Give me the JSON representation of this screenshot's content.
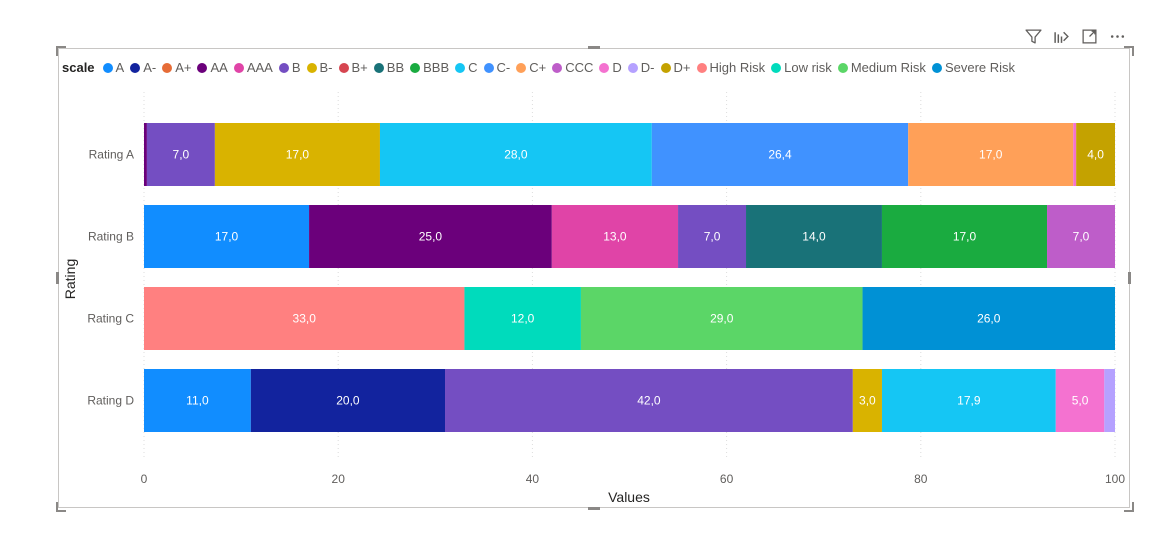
{
  "toolbar": {
    "filter_icon": "filter-icon",
    "drill_icon": "drill-icon",
    "focus_icon": "focus-mode-icon",
    "more_icon": "more-options-icon"
  },
  "legend": {
    "title": "scale",
    "items": [
      {
        "name": "A",
        "color": "#118DFF"
      },
      {
        "name": "A-",
        "color": "#12239E"
      },
      {
        "name": "A+",
        "color": "#E66C37"
      },
      {
        "name": "AA",
        "color": "#6B007B"
      },
      {
        "name": "AAA",
        "color": "#E044A7"
      },
      {
        "name": "B",
        "color": "#744EC2"
      },
      {
        "name": "B-",
        "color": "#D9B300"
      },
      {
        "name": "B+",
        "color": "#D64550"
      },
      {
        "name": "BB",
        "color": "#197278"
      },
      {
        "name": "BBB",
        "color": "#1AAB40"
      },
      {
        "name": "C",
        "color": "#15C6F4"
      },
      {
        "name": "C-",
        "color": "#4092FF"
      },
      {
        "name": "C+",
        "color": "#FFA058"
      },
      {
        "name": "CCC",
        "color": "#BE5DC9"
      },
      {
        "name": "D",
        "color": "#F472D0"
      },
      {
        "name": "D-",
        "color": "#B5A1FF"
      },
      {
        "name": "D+",
        "color": "#C4A200"
      },
      {
        "name": "High Risk",
        "color": "#FF8080"
      },
      {
        "name": "Low risk",
        "color": "#00DBBC"
      },
      {
        "name": "Medium Risk",
        "color": "#5BD667"
      },
      {
        "name": "Severe Risk",
        "color": "#0091D5"
      }
    ]
  },
  "chart_data": {
    "type": "bar",
    "orientation": "horizontal",
    "stacked": true,
    "categories": [
      "Rating A",
      "Rating B",
      "Rating C",
      "Rating D"
    ],
    "xlabel": "Values",
    "ylabel": "Rating",
    "xlim": [
      0,
      100
    ],
    "xticks": [
      "0",
      "20",
      "40",
      "60",
      "80",
      "100"
    ],
    "legend_position": "top-left",
    "grid": true,
    "rows": [
      {
        "category": "Rating A",
        "segments": [
          {
            "series": "AA",
            "value": 0.3,
            "label": ""
          },
          {
            "series": "B",
            "value": 7.0,
            "label": "7,0"
          },
          {
            "series": "B-",
            "value": 17.0,
            "label": "17,0"
          },
          {
            "series": "C",
            "value": 28.0,
            "label": "28,0"
          },
          {
            "series": "C-",
            "value": 26.4,
            "label": "26,4"
          },
          {
            "series": "C+",
            "value": 17.0,
            "label": "17,0"
          },
          {
            "series": "D",
            "value": 0.3,
            "label": ""
          },
          {
            "series": "D+",
            "value": 4.0,
            "label": "4,0"
          }
        ]
      },
      {
        "category": "Rating B",
        "segments": [
          {
            "series": "A",
            "value": 17.0,
            "label": "17,0"
          },
          {
            "series": "AA",
            "value": 25.0,
            "label": "25,0"
          },
          {
            "series": "AAA",
            "value": 13.0,
            "label": "13,0"
          },
          {
            "series": "B",
            "value": 7.0,
            "label": "7,0"
          },
          {
            "series": "BB",
            "value": 14.0,
            "label": "14,0"
          },
          {
            "series": "BBB",
            "value": 17.0,
            "label": "17,0"
          },
          {
            "series": "CCC",
            "value": 7.0,
            "label": "7,0"
          }
        ]
      },
      {
        "category": "Rating C",
        "segments": [
          {
            "series": "High Risk",
            "value": 33.0,
            "label": "33,0"
          },
          {
            "series": "Low risk",
            "value": 12.0,
            "label": "12,0"
          },
          {
            "series": "Medium Risk",
            "value": 29.0,
            "label": "29,0"
          },
          {
            "series": "Severe Risk",
            "value": 26.0,
            "label": "26,0"
          }
        ]
      },
      {
        "category": "Rating D",
        "segments": [
          {
            "series": "A",
            "value": 11.0,
            "label": "11,0"
          },
          {
            "series": "A-",
            "value": 20.0,
            "label": "20,0"
          },
          {
            "series": "B",
            "value": 42.0,
            "label": "42,0"
          },
          {
            "series": "B-",
            "value": 3.0,
            "label": "3,0"
          },
          {
            "series": "C",
            "value": 17.9,
            "label": "17,9"
          },
          {
            "series": "D",
            "value": 5.0,
            "label": "5,0"
          },
          {
            "series": "D-",
            "value": 1.1,
            "label": ""
          }
        ]
      }
    ]
  }
}
